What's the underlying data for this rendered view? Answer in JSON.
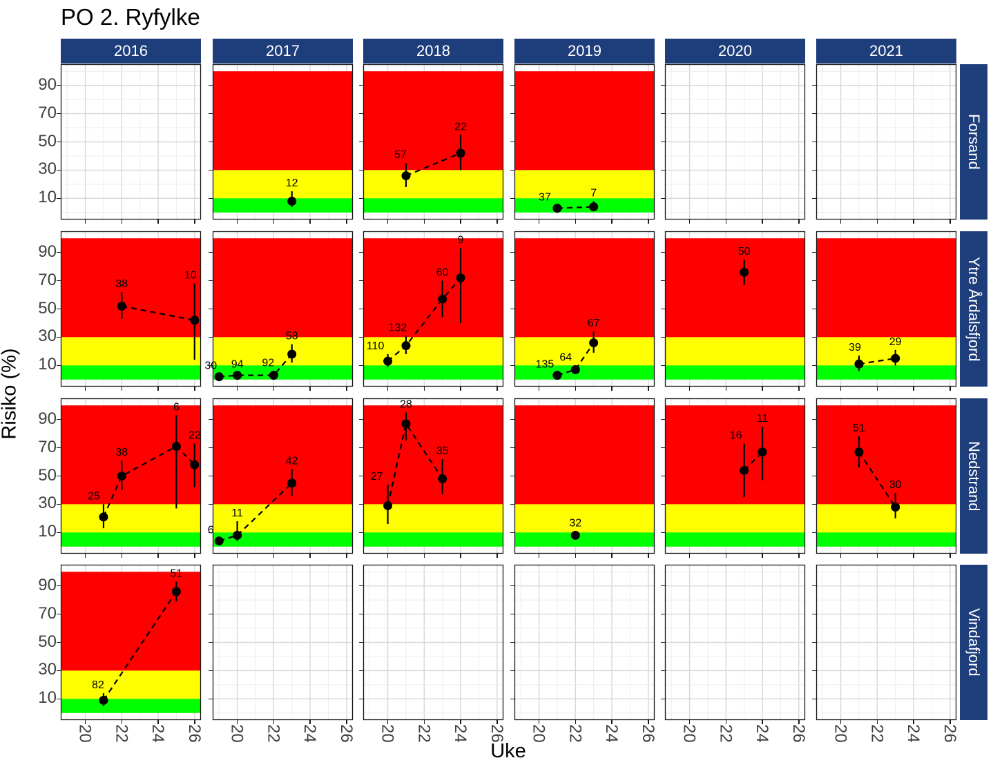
{
  "title": "PO 2. Ryfylke",
  "x_label": "Uke",
  "y_label": "Risiko (%)",
  "colors": {
    "strip_bg": "#1e3d7b",
    "strip_text": "#ffffff",
    "band_red": "#ff0000",
    "band_yellow": "#ffff00",
    "band_green": "#00ff00",
    "point": "#000000",
    "grid_major": "#d7d7d7",
    "grid_minor": "#ececec",
    "panel_border": "#1a1a1a",
    "tick_text": "#404040"
  },
  "chart_data": {
    "type": "scatter",
    "title": "PO 2. Ryfylke",
    "xlabel": "Uke",
    "ylabel": "Risiko (%)",
    "x_domain": [
      18.65,
      26.35
    ],
    "y_domain": [
      -5,
      105
    ],
    "x_ticks": [
      20,
      22,
      24,
      26
    ],
    "y_ticks": [
      90,
      70,
      50,
      30,
      10
    ],
    "grid_weeks": [
      19,
      20,
      21,
      22,
      23,
      24,
      25,
      26
    ],
    "facet_columns": [
      "2016",
      "2017",
      "2018",
      "2019",
      "2020",
      "2021"
    ],
    "facet_rows": [
      "Forsand",
      "Ytre Årdalsfjord",
      "Nedstrand",
      "Vindafjord"
    ],
    "risk_bands": [
      {
        "min": 30,
        "max": 100,
        "color": "#ff0000",
        "name": "high"
      },
      {
        "min": 10,
        "max": 30,
        "color": "#ffff00",
        "name": "medium"
      },
      {
        "min": 0,
        "max": 10,
        "color": "#00ff00",
        "name": "low"
      }
    ],
    "panels": [
      {
        "row": "Forsand",
        "col": "2016",
        "points": []
      },
      {
        "row": "Forsand",
        "col": "2017",
        "points": [
          {
            "week": 23,
            "risk": 8,
            "lo": 4,
            "hi": 15,
            "count": "12"
          }
        ]
      },
      {
        "row": "Forsand",
        "col": "2018",
        "points": [
          {
            "week": 21,
            "risk": 26,
            "lo": 18,
            "hi": 35,
            "count": "57",
            "ldx": -8
          },
          {
            "week": 24,
            "risk": 42,
            "lo": 30,
            "hi": 55,
            "count": "22"
          }
        ]
      },
      {
        "row": "Forsand",
        "col": "2019",
        "points": [
          {
            "week": 21,
            "risk": 3,
            "lo": 2,
            "hi": 5,
            "count": "37",
            "ldx": -18
          },
          {
            "week": 23,
            "risk": 4,
            "lo": 2,
            "hi": 8,
            "count": "7"
          }
        ]
      },
      {
        "row": "Forsand",
        "col": "2020",
        "points": []
      },
      {
        "row": "Forsand",
        "col": "2021",
        "points": []
      },
      {
        "row": "Ytre Årdalsfjord",
        "col": "2016",
        "points": [
          {
            "week": 22,
            "risk": 52,
            "lo": 43,
            "hi": 62,
            "count": "38"
          },
          {
            "week": 26,
            "risk": 42,
            "lo": 14,
            "hi": 68,
            "count": "10",
            "ldx": -6
          }
        ]
      },
      {
        "row": "Ytre Årdalsfjord",
        "col": "2017",
        "points": [
          {
            "week": 19,
            "risk": 2,
            "lo": 1,
            "hi": 4,
            "count": "30",
            "ldx": -12
          },
          {
            "week": 20,
            "risk": 3,
            "lo": 2,
            "hi": 5,
            "count": "94"
          },
          {
            "week": 22,
            "risk": 3,
            "lo": 2,
            "hi": 6,
            "count": "92",
            "ldx": -8
          },
          {
            "week": 23,
            "risk": 18,
            "lo": 12,
            "hi": 25,
            "count": "58"
          }
        ]
      },
      {
        "row": "Ytre Årdalsfjord",
        "col": "2018",
        "points": [
          {
            "week": 20,
            "risk": 13,
            "lo": 9,
            "hi": 18,
            "count": "110",
            "ldx": -18
          },
          {
            "week": 21,
            "risk": 24,
            "lo": 18,
            "hi": 31,
            "count": "132",
            "ldx": -12
          },
          {
            "week": 23,
            "risk": 57,
            "lo": 44,
            "hi": 70,
            "count": "60"
          },
          {
            "week": 24,
            "risk": 72,
            "lo": 40,
            "hi": 93,
            "count": "9"
          }
        ]
      },
      {
        "row": "Ytre Årdalsfjord",
        "col": "2019",
        "points": [
          {
            "week": 21,
            "risk": 3,
            "lo": 2,
            "hi": 5,
            "count": "135",
            "ldx": -18
          },
          {
            "week": 22,
            "risk": 7,
            "lo": 4,
            "hi": 10,
            "count": "64",
            "ldx": -14
          },
          {
            "week": 23,
            "risk": 26,
            "lo": 19,
            "hi": 34,
            "count": "67"
          }
        ]
      },
      {
        "row": "Ytre Årdalsfjord",
        "col": "2020",
        "points": [
          {
            "week": 23,
            "risk": 76,
            "lo": 67,
            "hi": 85,
            "count": "50"
          }
        ]
      },
      {
        "row": "Ytre Årdalsfjord",
        "col": "2021",
        "points": [
          {
            "week": 21,
            "risk": 11,
            "lo": 6,
            "hi": 17,
            "count": "39",
            "ldx": -6
          },
          {
            "week": 23,
            "risk": 15,
            "lo": 10,
            "hi": 21,
            "count": "29"
          }
        ]
      },
      {
        "row": "Nedstrand",
        "col": "2016",
        "points": [
          {
            "week": 21,
            "risk": 21,
            "lo": 13,
            "hi": 30,
            "count": "25",
            "ldx": -14
          },
          {
            "week": 22,
            "risk": 50,
            "lo": 40,
            "hi": 61,
            "count": "38"
          },
          {
            "week": 25,
            "risk": 71,
            "lo": 27,
            "hi": 93,
            "count": "6"
          },
          {
            "week": 26,
            "risk": 58,
            "lo": 42,
            "hi": 73,
            "count": "22"
          }
        ]
      },
      {
        "row": "Nedstrand",
        "col": "2017",
        "points": [
          {
            "week": 19,
            "risk": 4,
            "lo": 2,
            "hi": 6,
            "count": "6",
            "ldx": -12
          },
          {
            "week": 20,
            "risk": 8,
            "lo": 4,
            "hi": 18,
            "count": "11"
          },
          {
            "week": 23,
            "risk": 45,
            "lo": 36,
            "hi": 55,
            "count": "42"
          }
        ]
      },
      {
        "row": "Nedstrand",
        "col": "2018",
        "points": [
          {
            "week": 20,
            "risk": 29,
            "lo": 16,
            "hi": 44,
            "count": "27",
            "ldx": -16
          },
          {
            "week": 21,
            "risk": 87,
            "lo": 75,
            "hi": 95,
            "count": "28"
          },
          {
            "week": 23,
            "risk": 48,
            "lo": 37,
            "hi": 62,
            "count": "35"
          }
        ]
      },
      {
        "row": "Nedstrand",
        "col": "2019",
        "points": [
          {
            "week": 22,
            "risk": 8,
            "lo": 5,
            "hi": 11,
            "count": "32"
          }
        ]
      },
      {
        "row": "Nedstrand",
        "col": "2020",
        "points": [
          {
            "week": 23,
            "risk": 54,
            "lo": 35,
            "hi": 73,
            "count": "16",
            "ldx": -12
          },
          {
            "week": 24,
            "risk": 67,
            "lo": 47,
            "hi": 85,
            "count": "11"
          }
        ]
      },
      {
        "row": "Nedstrand",
        "col": "2021",
        "points": [
          {
            "week": 21,
            "risk": 67,
            "lo": 56,
            "hi": 78,
            "count": "51"
          },
          {
            "week": 23,
            "risk": 28,
            "lo": 20,
            "hi": 38,
            "count": "30"
          }
        ]
      },
      {
        "row": "Vindafjord",
        "col": "2016",
        "points": [
          {
            "week": 21,
            "risk": 9,
            "lo": 5,
            "hi": 14,
            "count": "82",
            "ldx": -8
          },
          {
            "week": 25,
            "risk": 86,
            "lo": 79,
            "hi": 93,
            "count": "51"
          }
        ]
      },
      {
        "row": "Vindafjord",
        "col": "2017",
        "points": []
      },
      {
        "row": "Vindafjord",
        "col": "2018",
        "points": []
      },
      {
        "row": "Vindafjord",
        "col": "2019",
        "points": []
      },
      {
        "row": "Vindafjord",
        "col": "2020",
        "points": []
      },
      {
        "row": "Vindafjord",
        "col": "2021",
        "points": []
      }
    ]
  }
}
